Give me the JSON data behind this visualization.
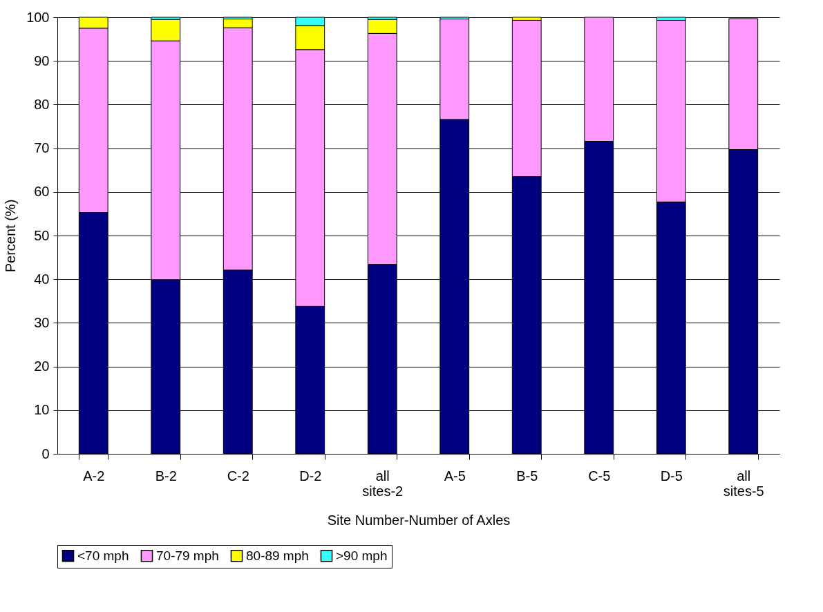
{
  "chart_data": {
    "type": "bar",
    "stacked": true,
    "xlabel": "Site Number-Number of Axles",
    "ylabel": "Percent (%)",
    "categories": [
      "A-2",
      "B-2",
      "C-2",
      "D-2",
      "all sites-2",
      "A-5",
      "B-5",
      "C-5",
      "D-5",
      "all sites-5"
    ],
    "series": [
      {
        "name": "<70 mph",
        "color": "#000080",
        "values": [
          55.3,
          39.9,
          42.1,
          33.8,
          43.4,
          76.6,
          63.5,
          71.6,
          57.7,
          69.7
        ]
      },
      {
        "name": "70-79 mph",
        "color": "#ff99ff",
        "values": [
          42.2,
          54.7,
          55.5,
          58.8,
          52.9,
          23.0,
          35.8,
          28.4,
          41.6,
          30.0
        ]
      },
      {
        "name": "80-89 mph",
        "color": "#ffff00",
        "values": [
          2.5,
          4.9,
          2.0,
          5.5,
          3.2,
          0,
          0.7,
          0,
          0,
          0
        ]
      },
      {
        "name": ">90 mph",
        "color": "#33ffff",
        "values": [
          0,
          0.5,
          0.4,
          1.9,
          0.5,
          0.4,
          0,
          0,
          0.7,
          0
        ]
      }
    ],
    "ylim": [
      0,
      100
    ],
    "yticks": [
      0,
      10,
      20,
      30,
      40,
      50,
      60,
      70,
      80,
      90,
      100
    ],
    "grid": "y",
    "legend": "bottom"
  }
}
